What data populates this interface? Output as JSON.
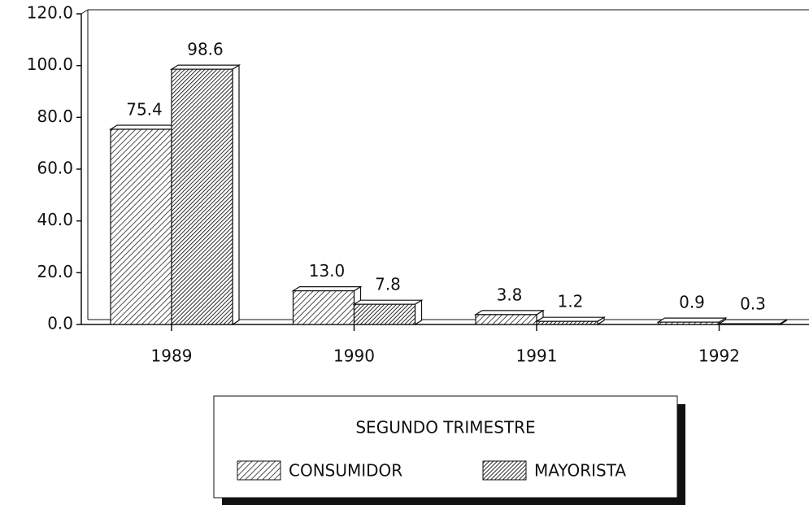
{
  "chart_data": {
    "type": "bar",
    "categories": [
      "1989",
      "1990",
      "1991",
      "1992"
    ],
    "series": [
      {
        "name": "CONSUMIDOR",
        "color": "#ffffff",
        "values": [
          75.4,
          13.0,
          3.8,
          0.9
        ],
        "value_labels": [
          "75.4",
          "13.0",
          "3.8",
          "0.9"
        ]
      },
      {
        "name": "MAYORISTA",
        "color": "#ffffff",
        "values": [
          98.6,
          7.8,
          1.2,
          0.3
        ],
        "value_labels": [
          "98.6",
          "7.8",
          "1.2",
          "0.3"
        ]
      }
    ],
    "ylim": [
      0,
      120
    ],
    "yticks": [
      {
        "value": 0,
        "label": "0.0"
      },
      {
        "value": 20,
        "label": "20.0"
      },
      {
        "value": 40,
        "label": "40.0"
      },
      {
        "value": 60,
        "label": "60.0"
      },
      {
        "value": 80,
        "label": "80.0"
      },
      {
        "value": 100,
        "label": "100.0"
      },
      {
        "value": 120,
        "label": "120.0"
      }
    ],
    "legend": {
      "title": "SEGUNDO TRIMESTRE",
      "position": "bottom"
    }
  }
}
